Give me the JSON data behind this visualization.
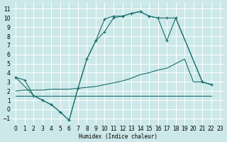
{
  "xlabel": "Humidex (Indice chaleur)",
  "bg_color": "#cce8e8",
  "grid_color": "#ffffff",
  "line_color": "#1a6e6e",
  "xlim": [
    -0.5,
    23.5
  ],
  "ylim": [
    -1.7,
    11.7
  ],
  "xticks": [
    0,
    1,
    2,
    3,
    4,
    5,
    6,
    7,
    8,
    9,
    10,
    11,
    12,
    13,
    14,
    15,
    16,
    17,
    18,
    19,
    20,
    21,
    22,
    23
  ],
  "yticks": [
    -1,
    0,
    1,
    2,
    3,
    4,
    5,
    6,
    7,
    8,
    9,
    10,
    11
  ],
  "line1_x": [
    0,
    1,
    2,
    3,
    4,
    5,
    6,
    7,
    8,
    9,
    10,
    11,
    12,
    13,
    14,
    15,
    16,
    17,
    18,
    21,
    22
  ],
  "line1_y": [
    3.5,
    3.2,
    1.5,
    1.0,
    0.5,
    -0.3,
    -1.2,
    2.3,
    5.5,
    7.5,
    8.5,
    10.0,
    10.2,
    10.5,
    10.7,
    10.2,
    10.0,
    10.0,
    10.0,
    3.0,
    2.7
  ],
  "line2_x": [
    0,
    2,
    3,
    4,
    5,
    6,
    7,
    8,
    9,
    10,
    11,
    12,
    13,
    14,
    15,
    16,
    17,
    18,
    21,
    22
  ],
  "line2_y": [
    3.5,
    1.5,
    1.0,
    0.5,
    -0.3,
    -1.2,
    2.3,
    5.5,
    7.5,
    9.9,
    10.2,
    10.2,
    10.5,
    10.7,
    10.2,
    10.0,
    7.5,
    10.0,
    3.0,
    2.7
  ],
  "line3_x": [
    0,
    1,
    2,
    3,
    4,
    5,
    6,
    7,
    8,
    9,
    10,
    11,
    12,
    13,
    14,
    15,
    16,
    17,
    18,
    19,
    20,
    21,
    22
  ],
  "line3_y": [
    1.5,
    1.5,
    1.5,
    1.5,
    1.5,
    1.5,
    1.5,
    1.5,
    1.5,
    1.5,
    1.5,
    1.5,
    1.5,
    1.5,
    1.5,
    1.5,
    1.5,
    1.5,
    1.5,
    1.5,
    1.5,
    1.5,
    1.5
  ],
  "line4_x": [
    0,
    1,
    2,
    3,
    4,
    5,
    6,
    7,
    8,
    9,
    10,
    11,
    12,
    13,
    14,
    15,
    16,
    17,
    18,
    19,
    20,
    21,
    22
  ],
  "line4_y": [
    2.0,
    2.1,
    2.1,
    2.1,
    2.2,
    2.2,
    2.2,
    2.3,
    2.4,
    2.5,
    2.7,
    2.9,
    3.1,
    3.4,
    3.8,
    4.0,
    4.3,
    4.5,
    5.0,
    5.5,
    3.0,
    3.0,
    2.7
  ],
  "ticklabel_fontsize": 5.5
}
